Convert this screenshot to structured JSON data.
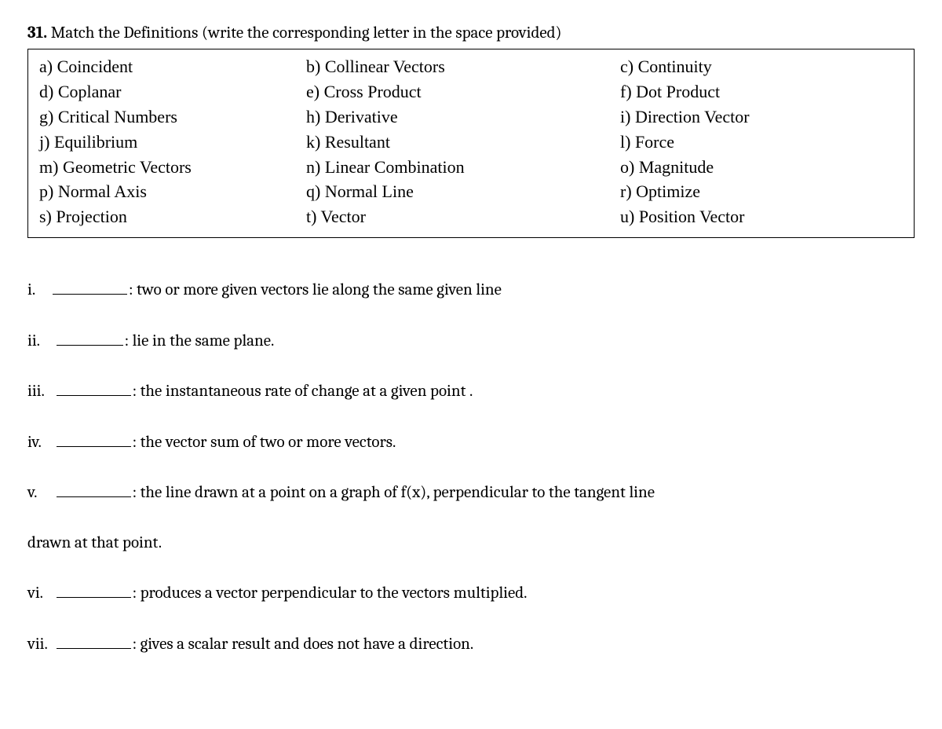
{
  "question": {
    "number": "31.",
    "prompt": "Match the Definitions (write the corresponding letter in the space provided)"
  },
  "terms": {
    "rows": [
      {
        "c1": "a) Coincident",
        "c2": "b) Collinear Vectors",
        "c3": "c) Continuity"
      },
      {
        "c1": "d) Coplanar",
        "c2": "e) Cross Product",
        "c3": "f) Dot Product"
      },
      {
        "c1": "g) Critical Numbers",
        "c2": "h) Derivative",
        "c3": "i) Direction Vector"
      },
      {
        "c1": "j) Equilibrium",
        "c2": "k) Resultant",
        "c3": "l) Force"
      },
      {
        "c1": "m) Geometric Vectors",
        "c2": "n) Linear Combination",
        "c3": "o) Magnitude"
      },
      {
        "c1": "p) Normal Axis",
        "c2": "q) Normal Line",
        "c3": "r) Optimize"
      },
      {
        "c1": "s) Projection",
        "c2": "t) Vector",
        "c3": "u) Position Vector"
      }
    ]
  },
  "definitions": {
    "i": {
      "roman": "i.",
      "text": ":  two or more given vectors lie along the same given line"
    },
    "ii": {
      "roman": "ii.",
      "text": ": lie in the same plane."
    },
    "iii": {
      "roman": "iii.",
      "text": ": the instantaneous rate of change at a given point ."
    },
    "iv": {
      "roman": "iv.",
      "text": ": the vector sum of two or more vectors."
    },
    "v": {
      "roman": "v.",
      "text": ": the line drawn at a point on a graph of f(x), perpendicular to the tangent line",
      "cont": "drawn at that point."
    },
    "vi": {
      "roman": "vi.",
      "text": ": produces a vector perpendicular to the vectors multiplied."
    },
    "vii": {
      "roman": "vii.",
      "text": ": gives a scalar result and does not have a direction."
    }
  }
}
